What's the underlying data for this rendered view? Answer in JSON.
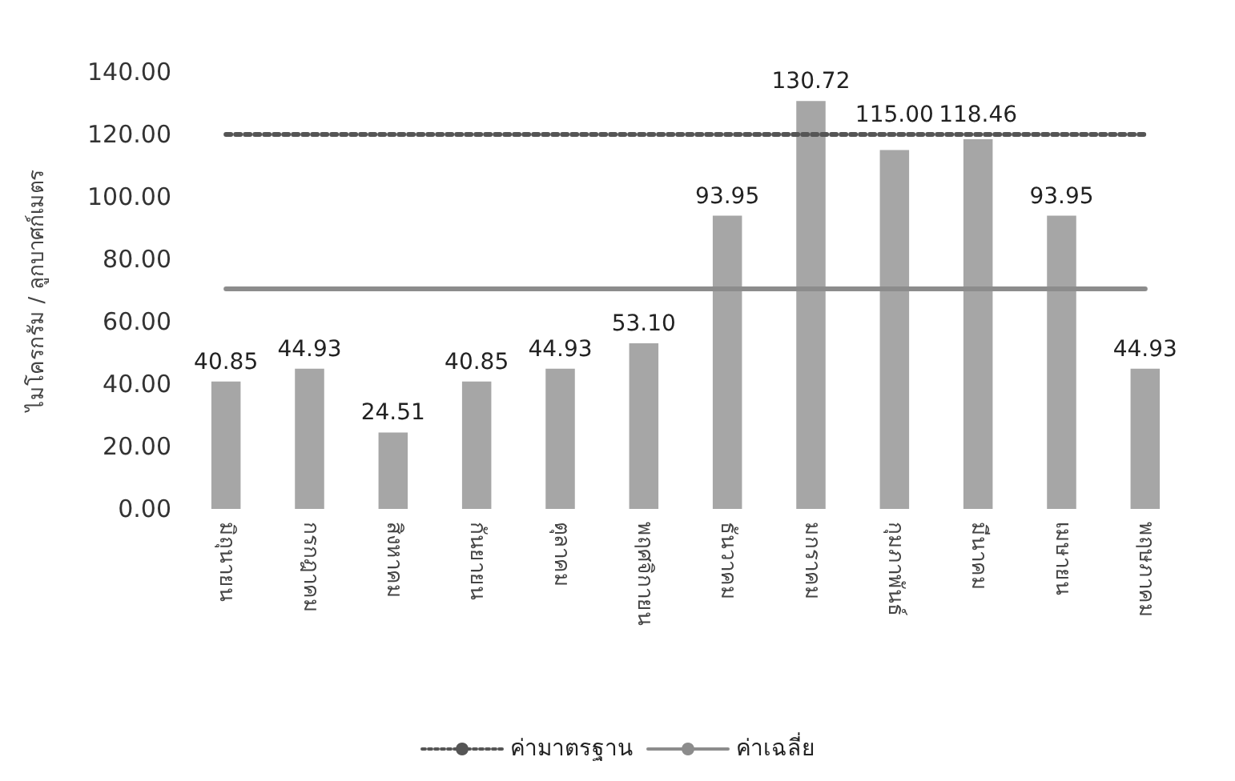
{
  "chart_data": {
    "type": "bar",
    "ylabel": "ไมโครกรัม / ลูกบาศก์เมตร",
    "categories": [
      "มิถุนายน",
      "กรกฎาคม",
      "สิงหาคม",
      "กันยายน",
      "ตุลาคม",
      "พฤศจิกายน",
      "ธันวาคม",
      "มกราคม",
      "กุมภาพันธ์",
      "มีนาคม",
      "เมษายน",
      "พฤษภาคม"
    ],
    "series": [
      {
        "color": "#a6a6a6",
        "values": [
          40.85,
          44.93,
          24.51,
          40.85,
          44.93,
          53.1,
          93.95,
          130.72,
          115.0,
          118.46,
          93.95,
          44.93
        ],
        "value_labels": [
          "40.85",
          "44.93",
          "24.51",
          "40.85",
          "44.93",
          "53.10",
          "93.95",
          "130.72",
          "115.00",
          "118.46",
          "93.95",
          "44.93"
        ]
      },
      {
        "type": "line",
        "name": "ค่ามาตรฐาน",
        "color": "#555555",
        "line_style": "dotted",
        "values": [
          120,
          120,
          120,
          120,
          120,
          120,
          120,
          120,
          120,
          120,
          120,
          120
        ]
      },
      {
        "type": "line",
        "name": "ค่าเฉลี่ย",
        "color": "#8c8c8c",
        "line_style": "solid",
        "values": [
          70.5,
          70.5,
          70.5,
          70.5,
          70.5,
          70.5,
          70.5,
          70.5,
          70.5,
          70.5,
          70.5,
          70.5
        ]
      }
    ],
    "ylim": [
      0,
      140
    ],
    "yticks": [
      {
        "value": 0,
        "label": "0.00"
      },
      {
        "value": 20,
        "label": "20.00"
      },
      {
        "value": 40,
        "label": "40.00"
      },
      {
        "value": 60,
        "label": "60.00"
      },
      {
        "value": 80,
        "label": "80.00"
      },
      {
        "value": 100,
        "label": "100.00"
      },
      {
        "value": 120,
        "label": "120.00"
      },
      {
        "value": 140,
        "label": "140.00"
      }
    ],
    "grid": false,
    "legend": "bottom",
    "marker": "none"
  }
}
